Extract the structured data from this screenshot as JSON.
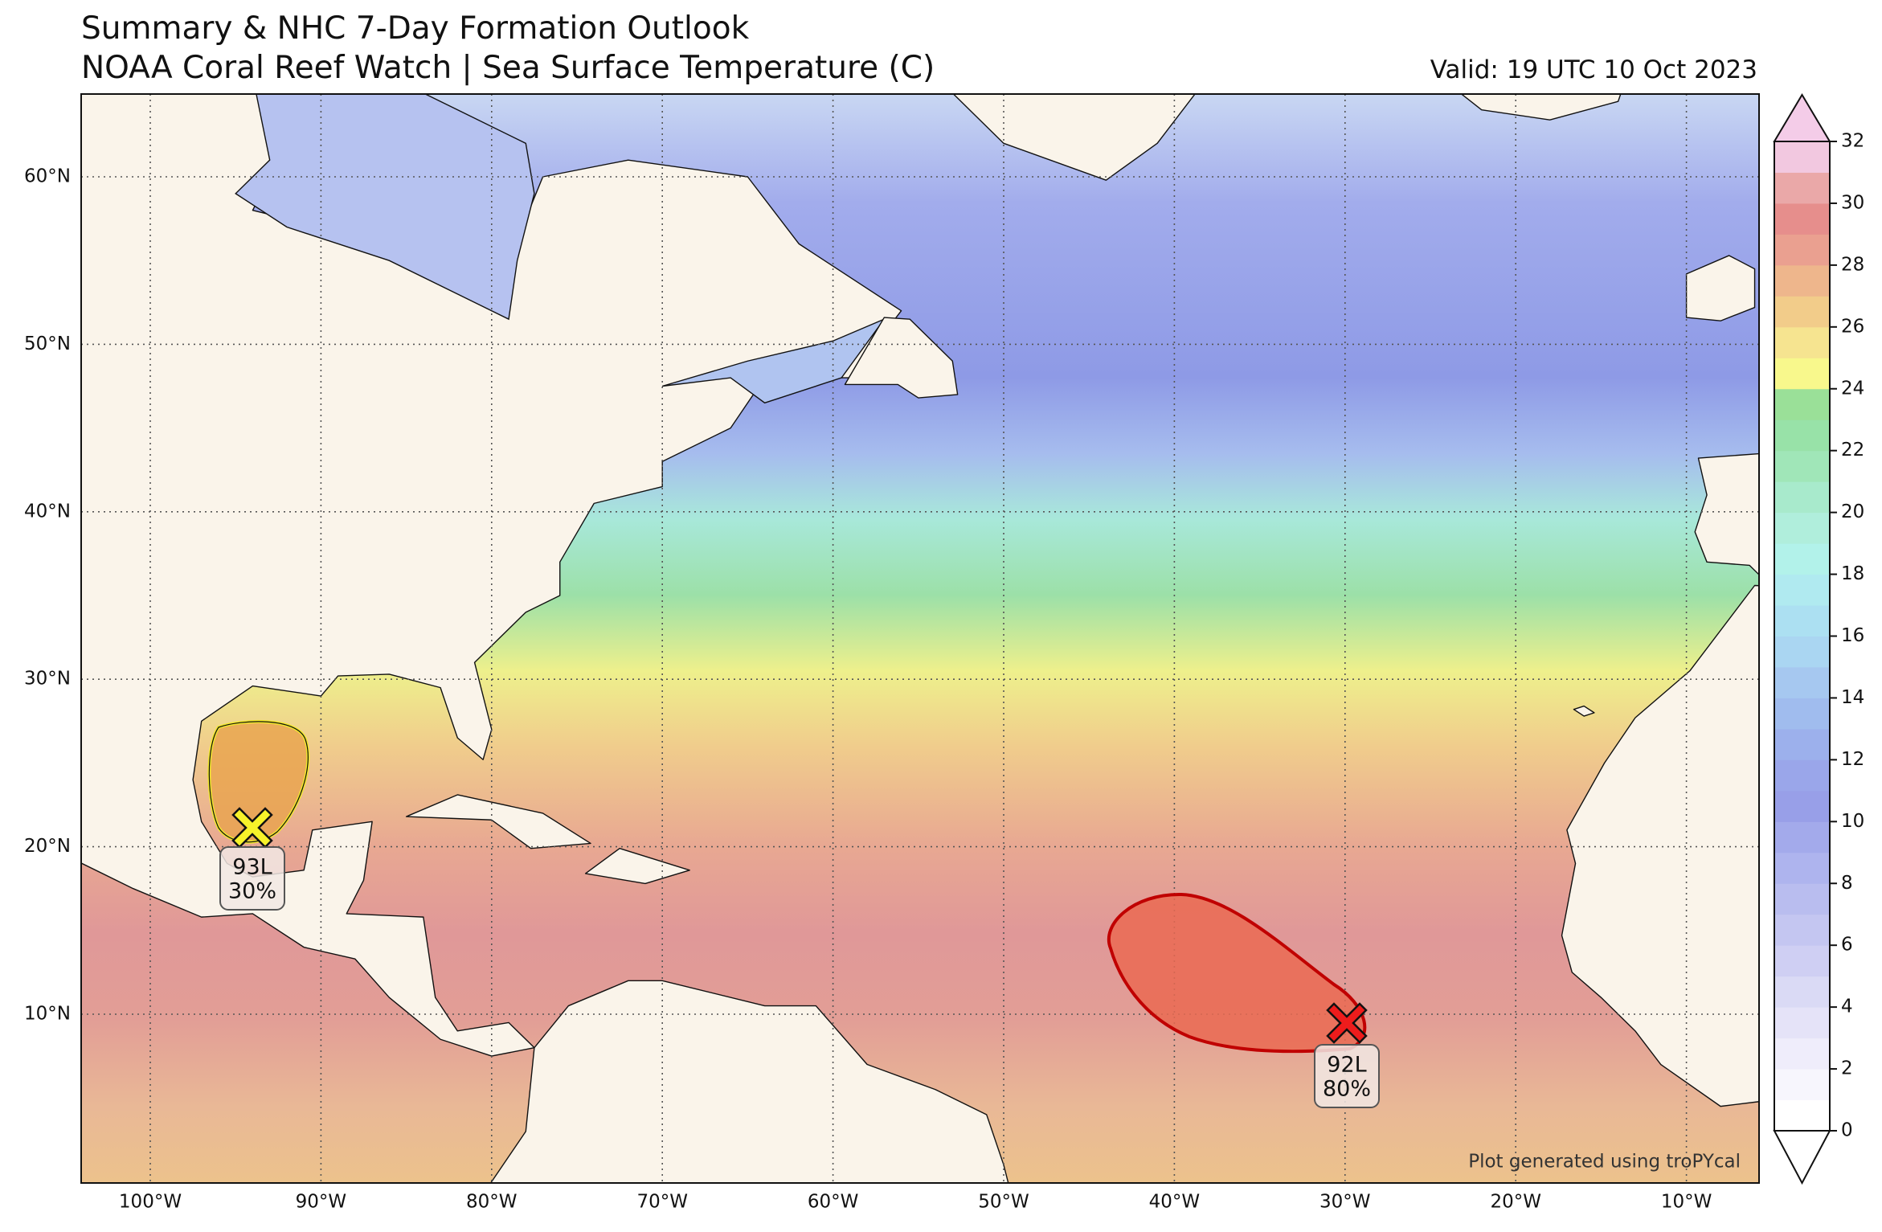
{
  "header": {
    "title": "Summary & NHC 7-Day Formation Outlook",
    "subtitle": "NOAA Coral Reef Watch | Sea Surface Temperature (C)",
    "valid": "Valid: 19 UTC 10 Oct 2023"
  },
  "map": {
    "lat_ticks": [
      {
        "value": 10,
        "label": "10°N"
      },
      {
        "value": 20,
        "label": "20°N"
      },
      {
        "value": 30,
        "label": "30°N"
      },
      {
        "value": 40,
        "label": "40°N"
      },
      {
        "value": 50,
        "label": "50°N"
      },
      {
        "value": 60,
        "label": "60°N"
      }
    ],
    "lon_ticks": [
      {
        "value": -100,
        "label": "100°W"
      },
      {
        "value": -90,
        "label": "90°W"
      },
      {
        "value": -80,
        "label": "80°W"
      },
      {
        "value": -70,
        "label": "70°W"
      },
      {
        "value": -60,
        "label": "60°W"
      },
      {
        "value": -50,
        "label": "50°W"
      },
      {
        "value": -40,
        "label": "40°W"
      },
      {
        "value": -30,
        "label": "30°W"
      },
      {
        "value": -20,
        "label": "20°W"
      },
      {
        "value": -10,
        "label": "10°W"
      }
    ],
    "disturbances": [
      {
        "id": "93L",
        "chance": "30%"
      },
      {
        "id": "92L",
        "chance": "80%"
      }
    ]
  },
  "colorbar": {
    "range": [
      0,
      32
    ],
    "ticks": [
      0,
      2,
      4,
      6,
      8,
      10,
      12,
      14,
      16,
      18,
      20,
      22,
      24,
      26,
      28,
      30,
      32
    ]
  },
  "footer": "Plot generated using troPYcal"
}
